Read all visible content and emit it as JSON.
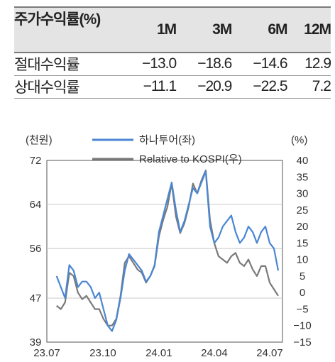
{
  "table": {
    "header": {
      "label": "주가수익률(%)",
      "periods": [
        "1M",
        "3M",
        "6M",
        "12M"
      ]
    },
    "rows": [
      {
        "label": "절대수익률",
        "values": [
          "−13.0",
          "−18.6",
          "−14.6",
          "12.9"
        ]
      },
      {
        "label": "상대수익률",
        "values": [
          "−11.1",
          "−20.9",
          "−22.5",
          "7.2"
        ]
      }
    ]
  },
  "chart_data": {
    "type": "line",
    "title": "",
    "left_unit": "(천원)",
    "right_unit": "(%)",
    "ylim_left": [
      39,
      72
    ],
    "yticks_left": [
      "72",
      "64",
      "56",
      "47",
      "39"
    ],
    "ylim_right": [
      -15,
      40
    ],
    "yticks_right": [
      "40",
      "35",
      "30",
      "25",
      "20",
      "15",
      "10",
      "5",
      "0",
      "−5",
      "−10",
      "−15"
    ],
    "xticks": [
      "23.07",
      "23.10",
      "24.01",
      "24.04",
      "24.07"
    ],
    "legend_position": "top",
    "series": [
      {
        "name": "하나투어(좌)",
        "axis": "left",
        "color": "#4a86d4",
        "x": [
          "2023-07-17",
          "2023-07-24",
          "2023-07-31",
          "2023-08-07",
          "2023-08-14",
          "2023-08-21",
          "2023-08-28",
          "2023-09-04",
          "2023-09-11",
          "2023-09-18",
          "2023-09-25",
          "2023-10-02",
          "2023-10-09",
          "2023-10-16",
          "2023-10-23",
          "2023-10-30",
          "2023-11-06",
          "2023-11-13",
          "2023-11-20",
          "2023-11-27",
          "2023-12-04",
          "2023-12-11",
          "2023-12-18",
          "2023-12-25",
          "2024-01-01",
          "2024-01-08",
          "2024-01-15",
          "2024-01-22",
          "2024-01-29",
          "2024-02-05",
          "2024-02-12",
          "2024-02-19",
          "2024-02-26",
          "2024-03-04",
          "2024-03-11",
          "2024-03-18",
          "2024-03-25",
          "2024-04-01",
          "2024-04-08",
          "2024-04-15",
          "2024-04-22",
          "2024-04-29",
          "2024-05-06",
          "2024-05-13",
          "2024-05-20",
          "2024-05-27",
          "2024-06-03",
          "2024-06-10",
          "2024-06-17",
          "2024-06-24",
          "2024-07-01",
          "2024-07-08",
          "2024-07-15"
        ],
        "values": [
          51,
          49,
          47,
          53,
          52,
          49,
          50,
          50,
          49,
          47,
          48,
          45,
          42,
          41,
          43,
          47,
          52,
          55,
          54,
          53,
          52,
          50,
          51,
          53,
          59,
          62,
          65,
          68,
          63,
          59,
          61,
          64,
          67,
          66,
          68,
          70,
          60,
          57,
          58,
          60,
          61,
          62,
          59,
          57,
          58,
          60,
          59,
          57,
          59,
          60,
          57,
          56,
          52
        ]
      },
      {
        "name": "Relative to KOSPI(우)",
        "axis": "right",
        "color": "#7a7a7a",
        "x": [
          "2023-07-17",
          "2023-07-24",
          "2023-07-31",
          "2023-08-07",
          "2023-08-14",
          "2023-08-21",
          "2023-08-28",
          "2023-09-04",
          "2023-09-11",
          "2023-09-18",
          "2023-09-25",
          "2023-10-02",
          "2023-10-09",
          "2023-10-16",
          "2023-10-23",
          "2023-10-30",
          "2023-11-06",
          "2023-11-13",
          "2023-11-20",
          "2023-11-27",
          "2023-12-04",
          "2023-12-11",
          "2023-12-18",
          "2023-12-25",
          "2024-01-01",
          "2024-01-08",
          "2024-01-15",
          "2024-01-22",
          "2024-01-29",
          "2024-02-05",
          "2024-02-12",
          "2024-02-19",
          "2024-02-26",
          "2024-03-04",
          "2024-03-11",
          "2024-03-18",
          "2024-03-25",
          "2024-04-01",
          "2024-04-08",
          "2024-04-15",
          "2024-04-22",
          "2024-04-29",
          "2024-05-06",
          "2024-05-13",
          "2024-05-20",
          "2024-05-27",
          "2024-06-03",
          "2024-06-10",
          "2024-06-17",
          "2024-06-24",
          "2024-07-01",
          "2024-07-08",
          "2024-07-15"
        ],
        "values": [
          -4,
          -5,
          -3,
          6,
          5,
          0,
          -2,
          -1,
          -3,
          -5,
          -5,
          -8,
          -10,
          -10,
          -8,
          -1,
          9,
          11,
          9,
          7,
          6,
          3,
          5,
          8,
          17,
          22,
          26,
          33,
          23,
          18,
          21,
          26,
          33,
          30,
          34,
          37,
          22,
          15,
          11,
          10,
          9,
          11,
          12,
          9,
          8,
          10,
          7,
          5,
          8,
          8,
          3,
          1,
          -1
        ]
      }
    ]
  }
}
